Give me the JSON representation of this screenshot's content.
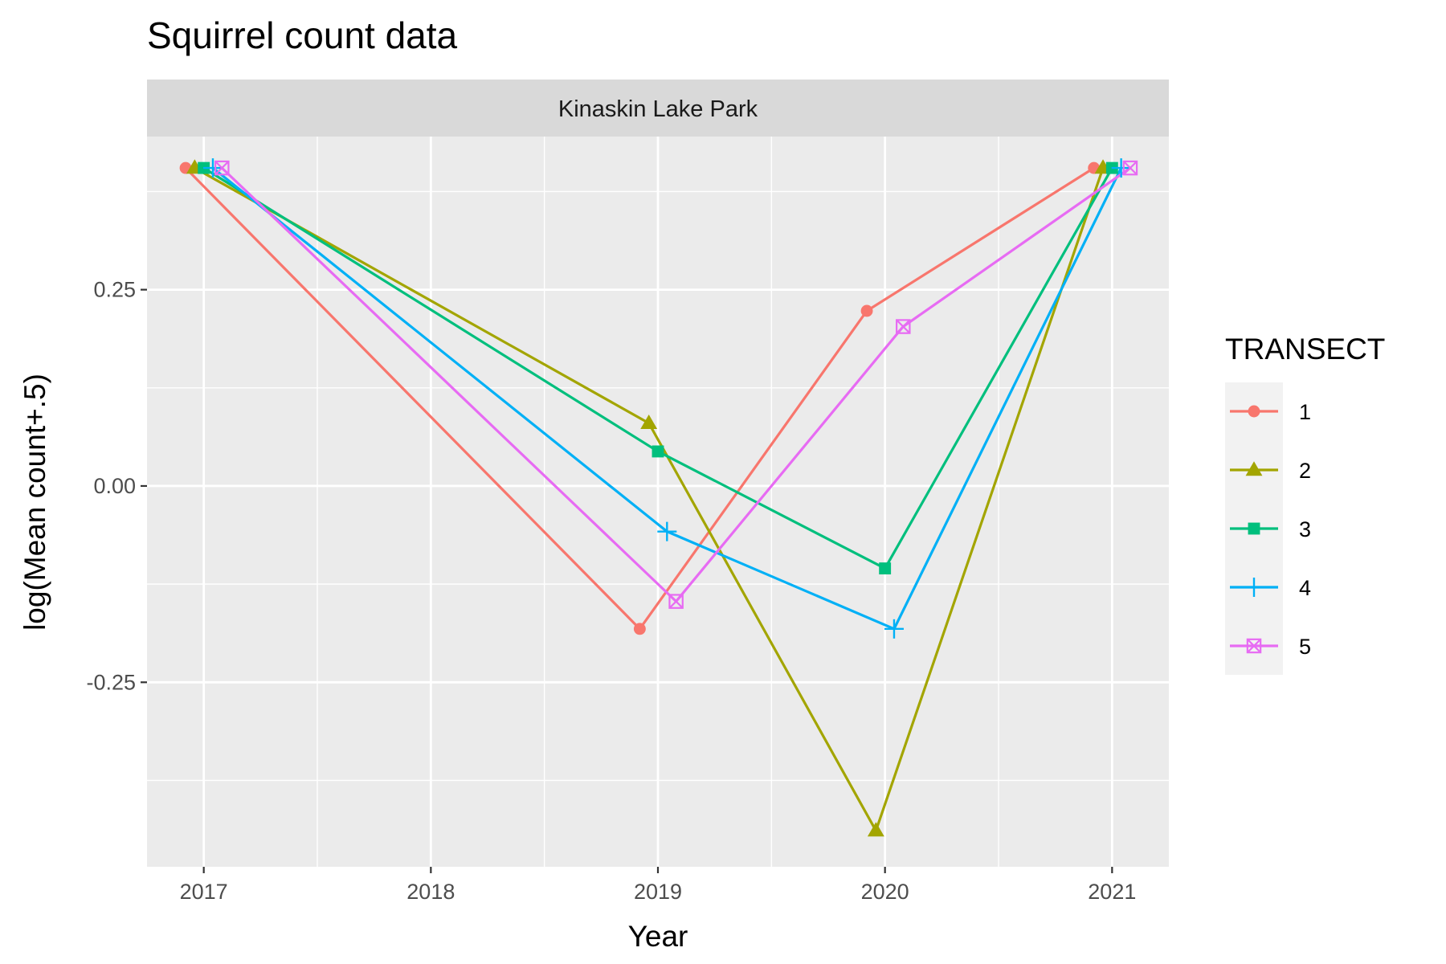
{
  "chart_data": {
    "type": "line",
    "title": "Squirrel count data",
    "facet_label": "Kinaskin Lake Park",
    "xlabel": "Year",
    "ylabel": "log(Mean count+.5)",
    "x_ticks": [
      "2017",
      "2018",
      "2019",
      "2020",
      "2021"
    ],
    "y_ticks": [
      {
        "value": 0.25,
        "label": "0.25"
      },
      {
        "value": 0.0,
        "label": "0.00"
      },
      {
        "value": -0.25,
        "label": "-0.25"
      }
    ],
    "xlim": [
      2016.75,
      2021.25
    ],
    "ylim": [
      -0.485,
      0.445
    ],
    "grid": true,
    "legend_title": "TRANSECT",
    "legend_position": "right",
    "series": [
      {
        "name": "1",
        "color": "#F8766D",
        "shape": "circle",
        "points": [
          {
            "x": 2017,
            "y": 0.405
          },
          {
            "x": 2019,
            "y": -0.182
          },
          {
            "x": 2020,
            "y": 0.223
          },
          {
            "x": 2021,
            "y": 0.405
          }
        ]
      },
      {
        "name": "2",
        "color": "#A3A500",
        "shape": "triangle",
        "points": [
          {
            "x": 2017,
            "y": 0.405
          },
          {
            "x": 2019,
            "y": 0.08
          },
          {
            "x": 2020,
            "y": -0.439
          },
          {
            "x": 2021,
            "y": 0.405
          }
        ]
      },
      {
        "name": "3",
        "color": "#00BF7D",
        "shape": "square",
        "points": [
          {
            "x": 2017,
            "y": 0.405
          },
          {
            "x": 2019,
            "y": 0.044
          },
          {
            "x": 2020,
            "y": -0.105
          },
          {
            "x": 2021,
            "y": 0.405
          }
        ]
      },
      {
        "name": "4",
        "color": "#00B0F6",
        "shape": "plus",
        "points": [
          {
            "x": 2017,
            "y": 0.405
          },
          {
            "x": 2019,
            "y": -0.058
          },
          {
            "x": 2020,
            "y": -0.182
          },
          {
            "x": 2021,
            "y": 0.405
          }
        ]
      },
      {
        "name": "5",
        "color": "#E76BF3",
        "shape": "square-cross",
        "points": [
          {
            "x": 2017,
            "y": 0.405
          },
          {
            "x": 2019,
            "y": -0.147
          },
          {
            "x": 2020,
            "y": 0.203
          },
          {
            "x": 2021,
            "y": 0.405
          }
        ]
      }
    ]
  }
}
